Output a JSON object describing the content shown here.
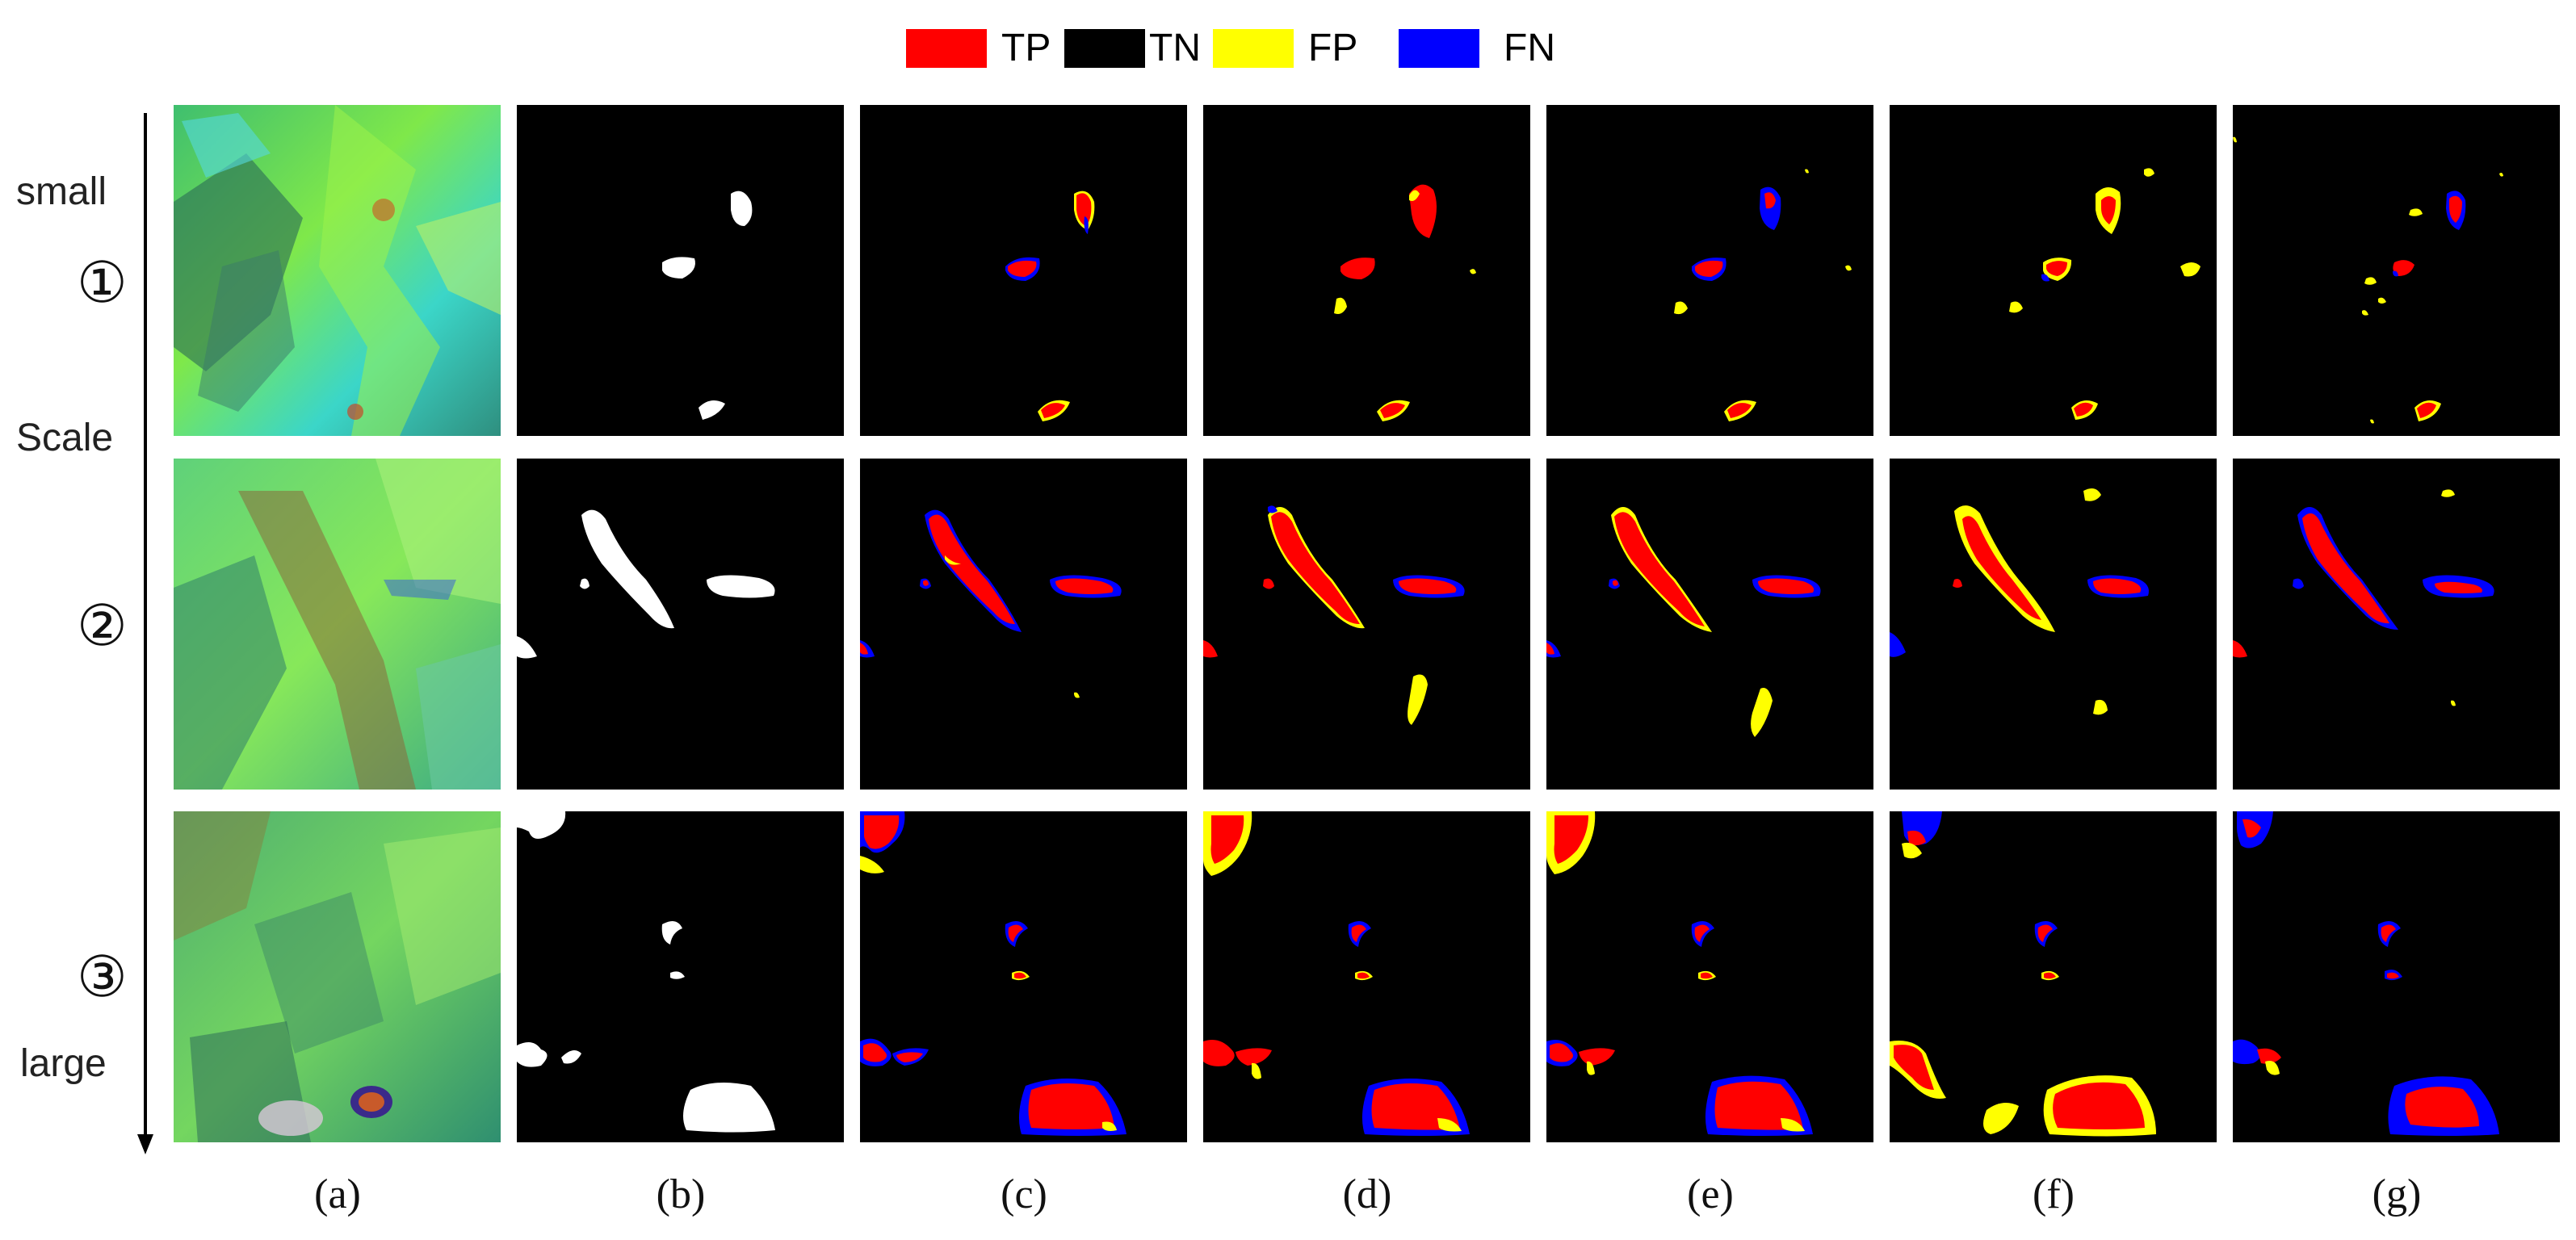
{
  "legend": [
    {
      "label": "TP",
      "color": "#ff0000"
    },
    {
      "label": "TN",
      "color": "#000000"
    },
    {
      "label": "FP",
      "color": "#ffff00"
    },
    {
      "label": "FN",
      "color": "#0000ff"
    }
  ],
  "scale_axis": {
    "top_label": "small",
    "middle_label": "Scale",
    "bottom_label": "large",
    "rows": [
      "①",
      "②",
      "③"
    ]
  },
  "columns": [
    "(a)",
    "(b)",
    "(c)",
    "(d)",
    "(e)",
    "(f)",
    "(g)"
  ],
  "colors": {
    "tp": "#ff0000",
    "tn": "#000000",
    "fp": "#ffff00",
    "fn": "#0000ff",
    "mask": "#ffffff"
  }
}
